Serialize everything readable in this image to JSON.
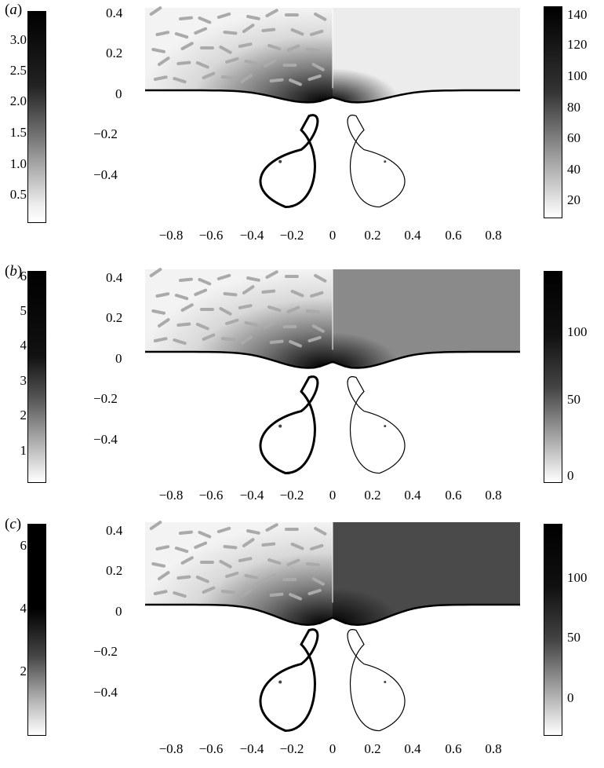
{
  "panels": [
    {
      "letter": "a",
      "left_cbar": {
        "ticks": [
          "3.0",
          "2.5",
          "2.0",
          "1.5",
          "1.0",
          "0.5"
        ]
      },
      "y_axis": {
        "ticks": [
          "0.4",
          "0.2",
          "0",
          "−0.2",
          "−0.4"
        ]
      },
      "right_cbar": {
        "ticks": [
          "140",
          "120",
          "100",
          "80",
          "60",
          "40",
          "20"
        ]
      },
      "x_axis": {
        "ticks": [
          "−0.8",
          "−0.6",
          "−0.4",
          "−0.2",
          "0",
          "0.2",
          "0.4",
          "0.6",
          "0.8"
        ]
      },
      "interface_depth": 0.06,
      "right_shade": "#ececec"
    },
    {
      "letter": "b",
      "left_cbar": {
        "ticks": [
          "6",
          "5",
          "4",
          "3",
          "2",
          "1"
        ]
      },
      "y_axis": {
        "ticks": [
          "0.4",
          "0.2",
          "0",
          "−0.2",
          "−0.4"
        ]
      },
      "right_cbar": {
        "ticks": [
          "100",
          "50",
          "0"
        ]
      },
      "x_axis": {
        "ticks": [
          "−0.8",
          "−0.6",
          "−0.4",
          "−0.2",
          "0",
          "0.2",
          "0.4",
          "0.6",
          "0.8"
        ]
      },
      "interface_depth": 0.08,
      "right_shade": "#8a8a8a"
    },
    {
      "letter": "c",
      "left_cbar": {
        "ticks": [
          "6",
          "4",
          "2"
        ]
      },
      "y_axis": {
        "ticks": [
          "0.4",
          "0.2",
          "0",
          "−0.2",
          "−0.4"
        ]
      },
      "right_cbar": {
        "ticks": [
          "100",
          "50",
          "0"
        ]
      },
      "x_axis": {
        "ticks": [
          "−0.8",
          "−0.6",
          "−0.4",
          "−0.2",
          "0",
          "0.2",
          "0.4",
          "0.6",
          "0.8"
        ]
      },
      "interface_depth": 0.1,
      "right_shade": "#4a4a4a"
    }
  ]
}
